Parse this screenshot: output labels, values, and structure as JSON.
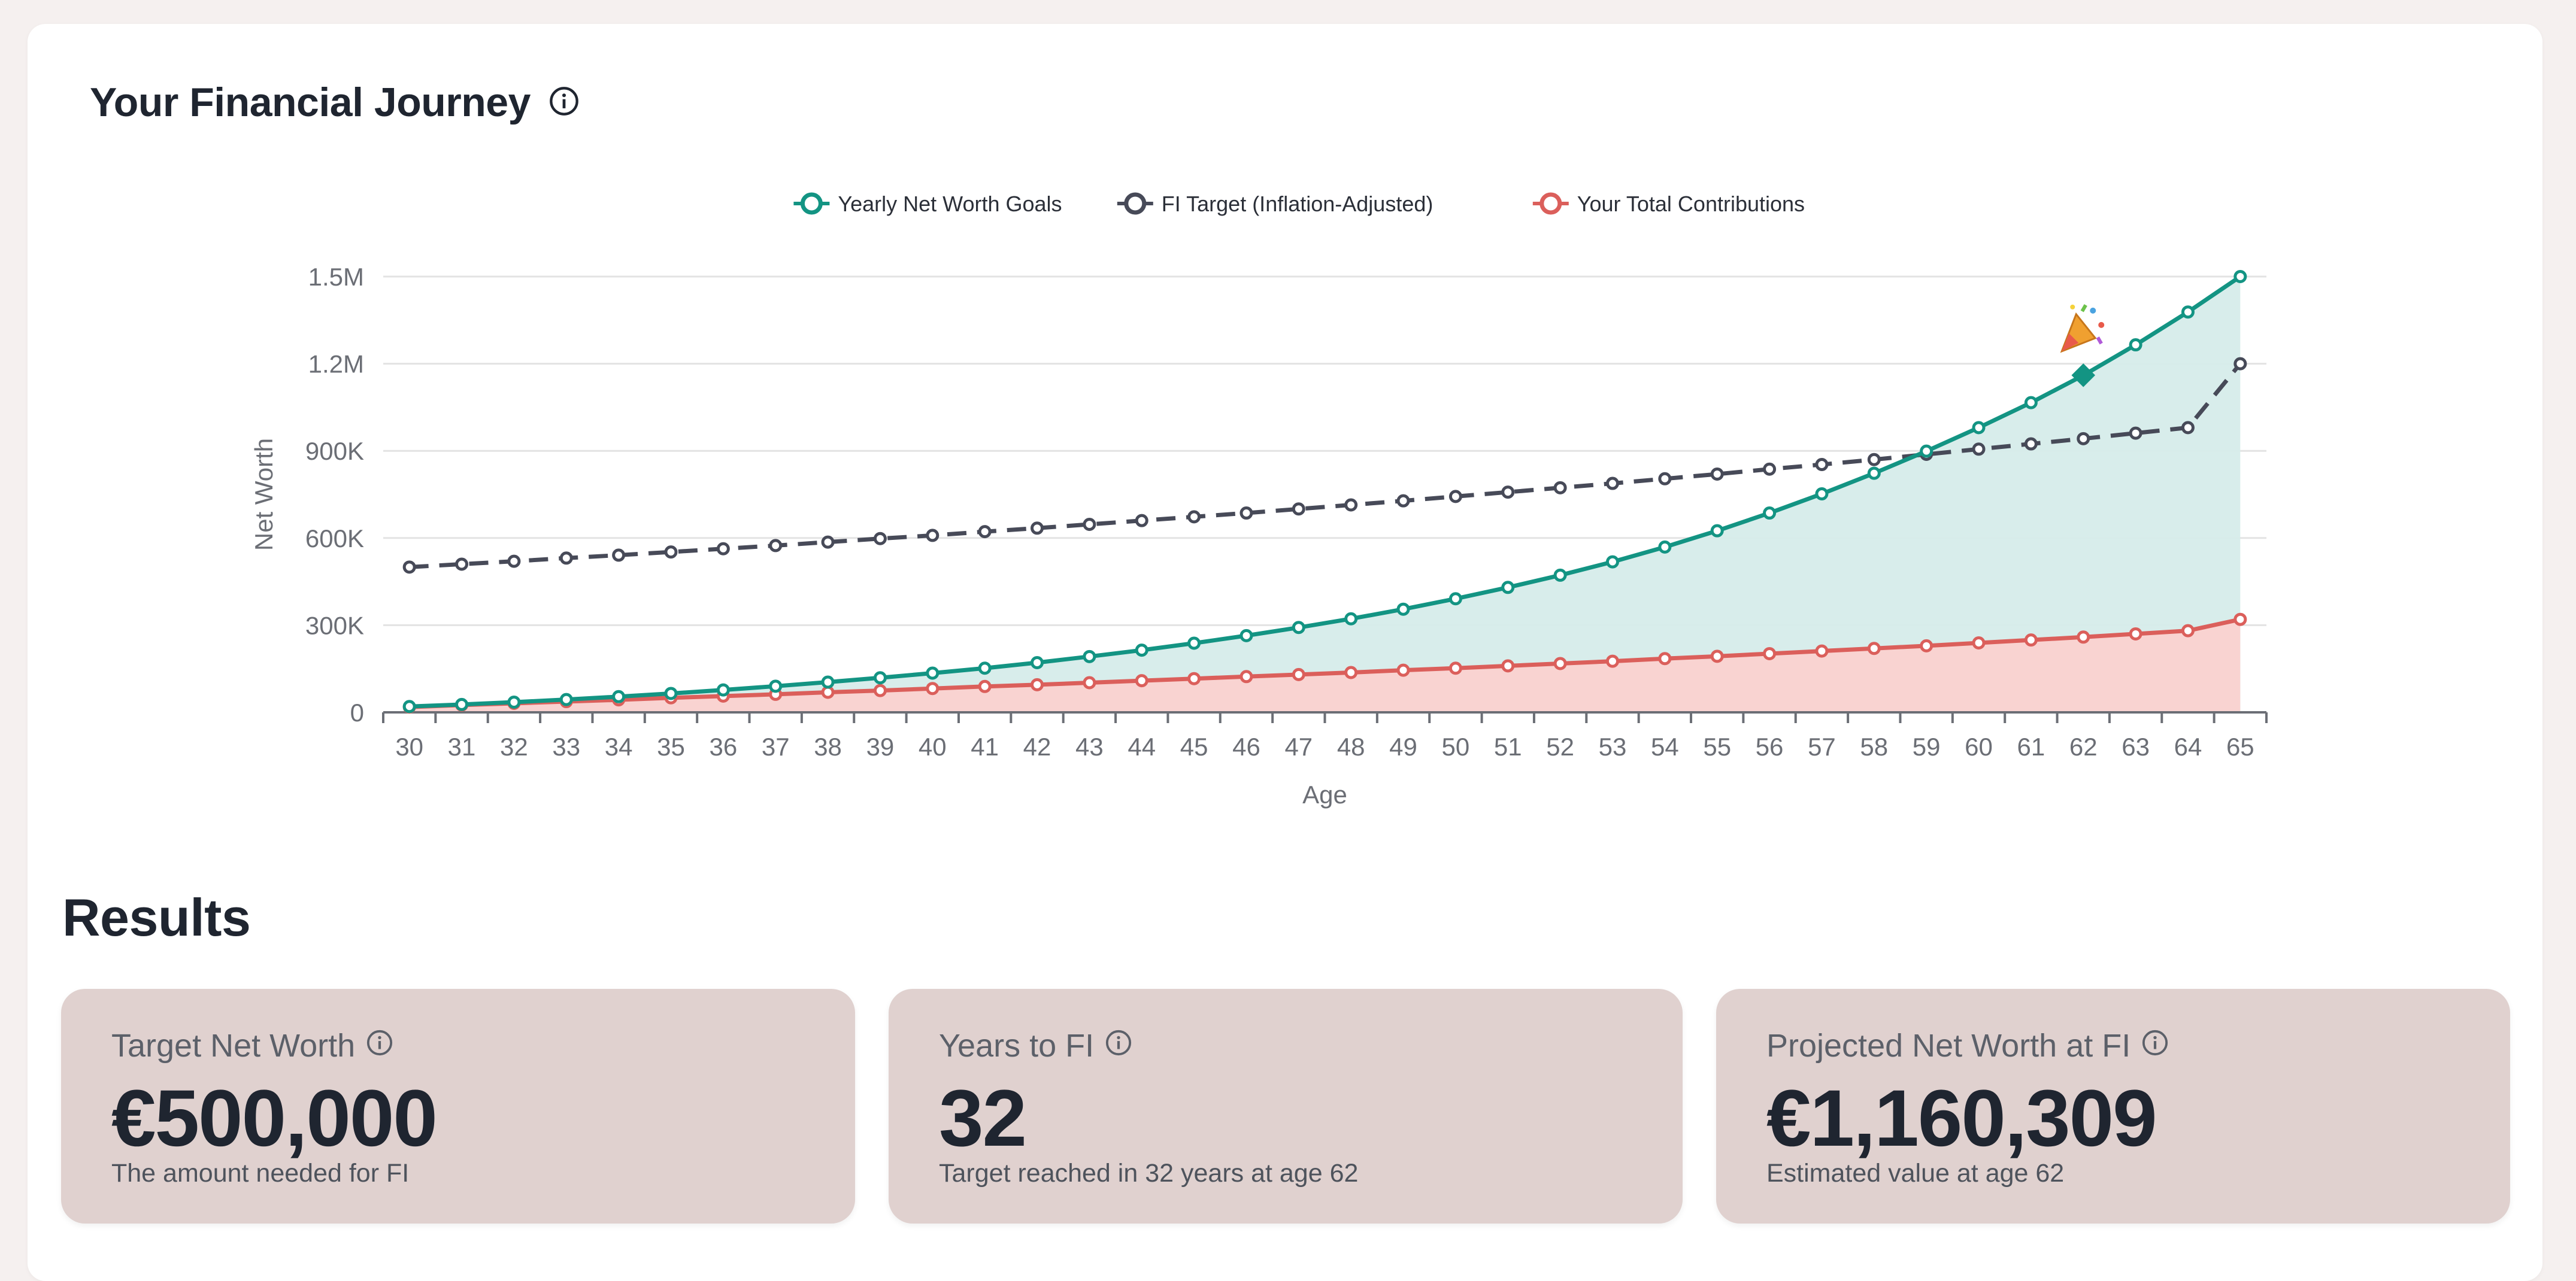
{
  "journey": {
    "title": "Your Financial Journey",
    "info_icon": "info-circle-icon"
  },
  "chart_data": {
    "type": "line",
    "x": [
      30,
      31,
      32,
      33,
      34,
      35,
      36,
      37,
      38,
      39,
      40,
      41,
      42,
      43,
      44,
      45,
      46,
      47,
      48,
      49,
      50,
      51,
      52,
      53,
      54,
      55,
      56,
      57,
      58,
      59,
      60,
      61,
      62,
      63,
      64,
      65
    ],
    "xlabel": "Age",
    "ylabel": "Net Worth",
    "ylim": [
      0,
      1500000
    ],
    "yticks": [
      0,
      300000,
      600000,
      900000,
      1200000,
      1500000
    ],
    "ytick_labels": [
      "0",
      "300K",
      "600K",
      "900K",
      "1.2M",
      "1.5M"
    ],
    "grid": "horizontal",
    "legend_position": "top-center",
    "series": [
      {
        "name": "Yearly Net Worth Goals",
        "color": "#139483",
        "style": "solid",
        "fill": "#d6ecea",
        "values": [
          20000,
          27000,
          35000,
          44000,
          54000,
          65000,
          77000,
          90000,
          104000,
          119000,
          135000,
          152000,
          171000,
          192000,
          214000,
          238000,
          264000,
          292000,
          322000,
          355000,
          391000,
          430000,
          472000,
          518000,
          569000,
          625000,
          686000,
          752000,
          823000,
          899000,
          980000,
          1066000,
          1160000,
          1265000,
          1378000,
          1500000
        ]
      },
      {
        "name": "FI Target (Inflation-Adjusted)",
        "color": "#474a58",
        "style": "dashed",
        "values": [
          500000,
          510000,
          520000,
          531000,
          541000,
          552000,
          563000,
          574000,
          586000,
          598000,
          609000,
          622000,
          634000,
          647000,
          660000,
          673000,
          686000,
          700000,
          714000,
          728000,
          743000,
          758000,
          773000,
          788000,
          804000,
          820000,
          837000,
          853000,
          870000,
          888000,
          906000,
          924000,
          942000,
          961000,
          980000,
          1200000
        ]
      },
      {
        "name": "Your Total Contributions",
        "color": "#db5f5b",
        "style": "solid",
        "fill": "#f9d3d1",
        "values": [
          18000,
          25000,
          31000,
          37000,
          43000,
          50000,
          56000,
          62000,
          69000,
          75000,
          82000,
          89000,
          95000,
          102000,
          109000,
          116000,
          123000,
          130000,
          137000,
          145000,
          152000,
          160000,
          168000,
          176000,
          185000,
          193000,
          202000,
          211000,
          220000,
          229000,
          239000,
          249000,
          259000,
          270000,
          281000,
          320000
        ]
      }
    ],
    "fi_marker": {
      "age": 62,
      "value": 1160309,
      "icon": "party-popper-icon"
    }
  },
  "results": {
    "title": "Results",
    "cards": [
      {
        "label": "Target Net Worth",
        "value": "€500,000",
        "sub": "The amount needed for FI",
        "icon": "info-circle-icon"
      },
      {
        "label": "Years to FI",
        "value": "32",
        "sub": "Target reached in 32 years at age 62",
        "icon": "info-circle-icon"
      },
      {
        "label": "Projected Net Worth at FI",
        "value": "€1,160,309",
        "sub": "Estimated value at age 62",
        "icon": "info-circle-icon"
      }
    ]
  }
}
